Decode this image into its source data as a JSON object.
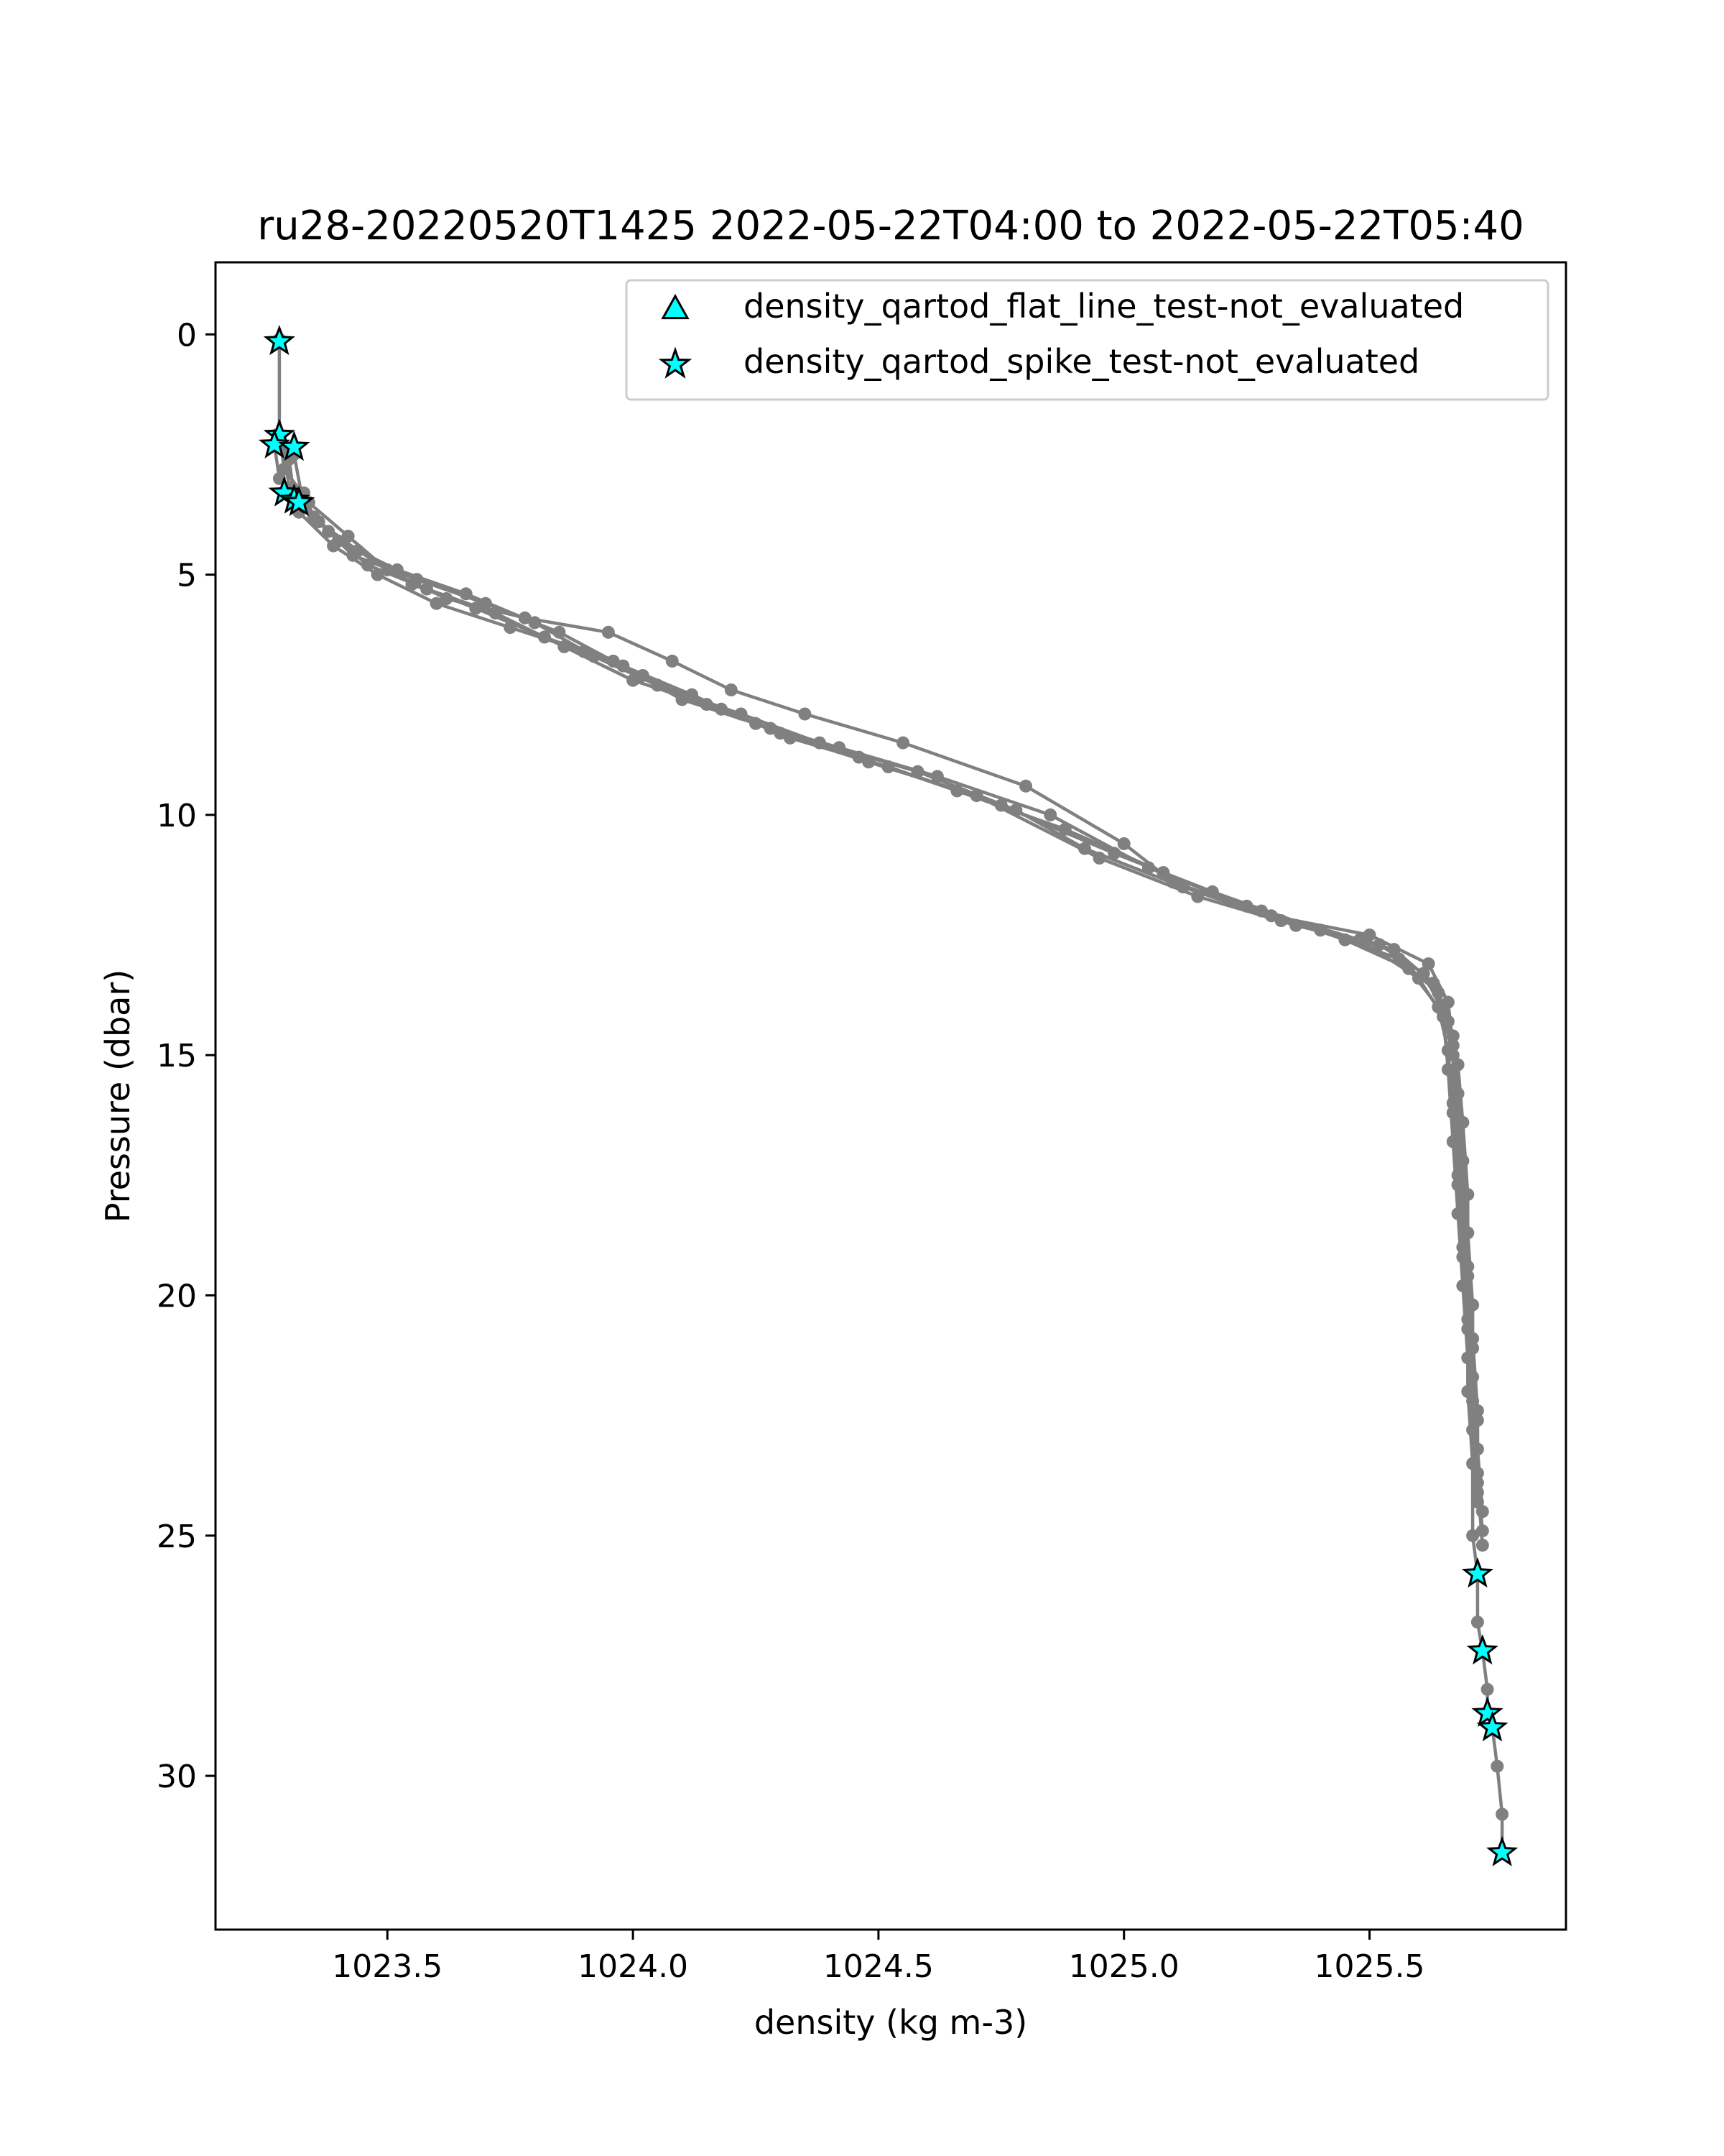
{
  "chart_data": {
    "type": "line",
    "title": "ru28-20220520T1425 2022-05-22T04:00 to 2022-05-22T05:40",
    "xlabel": "density (kg m-3)",
    "ylabel": "Pressure (dbar)",
    "xlim": [
      1023.15,
      1025.9
    ],
    "ylim": [
      33.2,
      -1.5
    ],
    "y_inverted": true,
    "grid": false,
    "legend_position": "top-right",
    "x_ticks": [
      "1023.5",
      "1024.0",
      "1024.5",
      "1025.0",
      "1025.5"
    ],
    "y_ticks": [
      "0",
      "5",
      "10",
      "15",
      "20",
      "25",
      "30"
    ],
    "series": [
      {
        "color": "#808080",
        "marker": "circle",
        "profiles": [
          [
            [
              1023.28,
              0.1
            ],
            [
              1023.28,
              2.1
            ],
            [
              1023.29,
              2.8
            ],
            [
              1023.34,
              3.5
            ],
            [
              1023.42,
              4.2
            ],
            [
              1023.5,
              4.9
            ],
            [
              1023.62,
              5.5
            ],
            [
              1023.78,
              5.9
            ],
            [
              1023.95,
              6.2
            ],
            [
              1024.08,
              6.8
            ],
            [
              1024.2,
              7.4
            ],
            [
              1024.35,
              7.9
            ],
            [
              1024.55,
              8.5
            ],
            [
              1024.8,
              9.4
            ],
            [
              1025.0,
              10.6
            ],
            [
              1025.1,
              11.4
            ],
            [
              1025.3,
              12.1
            ],
            [
              1025.5,
              12.5
            ],
            [
              1025.62,
              13.1
            ],
            [
              1025.66,
              13.9
            ],
            [
              1025.67,
              14.8
            ],
            [
              1025.67,
              16.0
            ],
            [
              1025.68,
              17.5
            ],
            [
              1025.69,
              19.0
            ],
            [
              1025.7,
              20.5
            ],
            [
              1025.7,
              22.0
            ],
            [
              1025.71,
              23.5
            ],
            [
              1025.71,
              25.0
            ],
            [
              1025.72,
              25.8
            ],
            [
              1025.72,
              26.8
            ],
            [
              1025.73,
              27.4
            ],
            [
              1025.74,
              28.2
            ],
            [
              1025.74,
              28.7
            ],
            [
              1025.75,
              29.0
            ],
            [
              1025.76,
              29.8
            ],
            [
              1025.77,
              30.8
            ],
            [
              1025.77,
              31.6
            ]
          ],
          [
            [
              1023.27,
              2.3
            ],
            [
              1023.28,
              3.0
            ],
            [
              1023.32,
              3.7
            ],
            [
              1023.39,
              4.4
            ],
            [
              1023.48,
              5.0
            ],
            [
              1023.6,
              5.6
            ],
            [
              1023.75,
              6.1
            ],
            [
              1023.9,
              6.6
            ],
            [
              1024.02,
              7.1
            ],
            [
              1024.15,
              7.7
            ],
            [
              1024.3,
              8.3
            ],
            [
              1024.48,
              8.9
            ],
            [
              1024.7,
              9.6
            ],
            [
              1024.95,
              10.9
            ],
            [
              1025.15,
              11.7
            ],
            [
              1025.35,
              12.3
            ],
            [
              1025.55,
              12.8
            ],
            [
              1025.63,
              13.5
            ],
            [
              1025.66,
              14.3
            ],
            [
              1025.68,
              15.2
            ],
            [
              1025.69,
              16.4
            ],
            [
              1025.7,
              17.9
            ],
            [
              1025.7,
              19.4
            ],
            [
              1025.71,
              20.9
            ],
            [
              1025.72,
              22.4
            ],
            [
              1025.72,
              23.9
            ],
            [
              1025.73,
              25.2
            ]
          ],
          [
            [
              1023.29,
              2.4
            ],
            [
              1023.3,
              3.2
            ],
            [
              1023.36,
              3.9
            ],
            [
              1023.44,
              4.5
            ],
            [
              1023.55,
              5.2
            ],
            [
              1023.68,
              5.7
            ],
            [
              1023.82,
              6.3
            ],
            [
              1023.98,
              6.9
            ],
            [
              1024.12,
              7.5
            ],
            [
              1024.25,
              8.1
            ],
            [
              1024.42,
              8.6
            ],
            [
              1024.62,
              9.2
            ],
            [
              1024.85,
              10.0
            ],
            [
              1025.05,
              11.1
            ],
            [
              1025.25,
              11.9
            ],
            [
              1025.45,
              12.6
            ],
            [
              1025.58,
              13.2
            ],
            [
              1025.64,
              14.0
            ],
            [
              1025.66,
              14.9
            ],
            [
              1025.67,
              16.2
            ],
            [
              1025.68,
              17.7
            ],
            [
              1025.69,
              19.2
            ],
            [
              1025.7,
              20.7
            ],
            [
              1025.71,
              22.2
            ],
            [
              1025.72,
              23.7
            ],
            [
              1025.73,
              24.9
            ]
          ],
          [
            [
              1023.3,
              2.6
            ],
            [
              1023.31,
              3.4
            ],
            [
              1023.38,
              4.1
            ],
            [
              1023.46,
              4.8
            ],
            [
              1023.58,
              5.3
            ],
            [
              1023.72,
              5.8
            ],
            [
              1023.86,
              6.5
            ],
            [
              1024.0,
              7.2
            ],
            [
              1024.18,
              7.8
            ],
            [
              1024.32,
              8.4
            ],
            [
              1024.52,
              9.0
            ],
            [
              1024.75,
              9.8
            ],
            [
              1024.98,
              10.8
            ],
            [
              1025.18,
              11.6
            ],
            [
              1025.4,
              12.4
            ],
            [
              1025.56,
              13.0
            ],
            [
              1025.64,
              13.7
            ],
            [
              1025.67,
              14.6
            ],
            [
              1025.68,
              15.8
            ],
            [
              1025.69,
              17.2
            ],
            [
              1025.7,
              18.7
            ],
            [
              1025.71,
              20.2
            ],
            [
              1025.71,
              21.7
            ],
            [
              1025.72,
              23.2
            ],
            [
              1025.73,
              24.5
            ]
          ],
          [
            [
              1023.31,
              2.5
            ],
            [
              1023.33,
              3.6
            ],
            [
              1023.4,
              4.3
            ],
            [
              1023.52,
              4.9
            ],
            [
              1023.66,
              5.4
            ],
            [
              1023.8,
              6.0
            ],
            [
              1023.92,
              6.7
            ],
            [
              1024.05,
              7.3
            ],
            [
              1024.22,
              7.9
            ],
            [
              1024.38,
              8.5
            ],
            [
              1024.58,
              9.1
            ],
            [
              1024.78,
              9.9
            ],
            [
              1024.92,
              10.7
            ],
            [
              1025.12,
              11.5
            ],
            [
              1025.32,
              12.2
            ],
            [
              1025.52,
              12.7
            ],
            [
              1025.61,
              13.3
            ],
            [
              1025.65,
              14.1
            ],
            [
              1025.67,
              15.0
            ],
            [
              1025.68,
              16.6
            ],
            [
              1025.69,
              18.1
            ],
            [
              1025.7,
              19.6
            ],
            [
              1025.71,
              21.1
            ],
            [
              1025.72,
              22.6
            ],
            [
              1025.72,
              24.1
            ]
          ],
          [
            [
              1023.33,
              3.3
            ],
            [
              1023.35,
              3.8
            ],
            [
              1023.43,
              4.6
            ],
            [
              1023.56,
              5.1
            ],
            [
              1023.7,
              5.6
            ],
            [
              1023.85,
              6.2
            ],
            [
              1023.96,
              6.8
            ],
            [
              1024.1,
              7.6
            ],
            [
              1024.28,
              8.2
            ],
            [
              1024.46,
              8.8
            ],
            [
              1024.66,
              9.5
            ],
            [
              1024.88,
              10.3
            ],
            [
              1025.08,
              11.2
            ],
            [
              1025.28,
              12.0
            ],
            [
              1025.48,
              12.6
            ],
            [
              1025.6,
              13.4
            ],
            [
              1025.65,
              14.2
            ],
            [
              1025.66,
              15.3
            ],
            [
              1025.67,
              16.8
            ],
            [
              1025.68,
              18.3
            ],
            [
              1025.69,
              19.8
            ],
            [
              1025.7,
              21.3
            ],
            [
              1025.71,
              22.8
            ],
            [
              1025.72,
              24.3
            ]
          ]
        ]
      },
      {
        "name": "density_qartod_flat_line_test-not_evaluated",
        "marker": "triangle",
        "color": "#00ffff",
        "points": []
      },
      {
        "name": "density_qartod_spike_test-not_evaluated",
        "marker": "star",
        "color": "#00ffff",
        "points": [
          [
            1023.28,
            0.15
          ],
          [
            1023.28,
            2.1
          ],
          [
            1023.27,
            2.3
          ],
          [
            1023.31,
            2.35
          ],
          [
            1023.29,
            3.3
          ],
          [
            1023.31,
            3.45
          ],
          [
            1023.32,
            3.5
          ],
          [
            1025.72,
            25.8
          ],
          [
            1025.73,
            27.4
          ],
          [
            1025.74,
            28.7
          ],
          [
            1025.75,
            29.0
          ],
          [
            1025.77,
            31.6
          ]
        ]
      }
    ]
  }
}
